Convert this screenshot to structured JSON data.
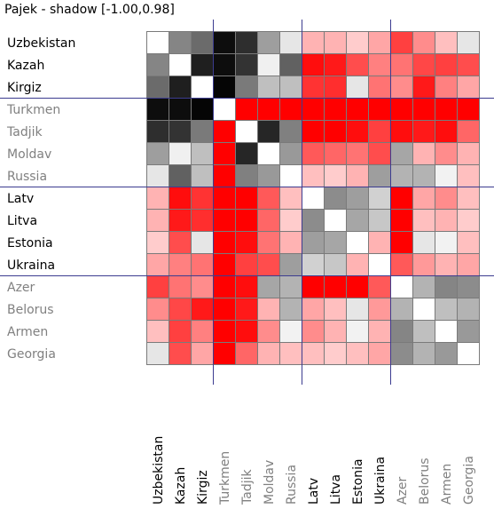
{
  "window": {
    "title": "Pajek - shadow [-1.00,0.98]"
  },
  "colors": {
    "background": "#ffffff",
    "cell_border": "#7a7a7a",
    "partition_line": "#3c3c90",
    "label_dark": "#000000",
    "label_gray": "#808080",
    "negative_hue": "#ff0000",
    "positive_shade": "#000000"
  },
  "chart_data": {
    "type": "heatmap",
    "title": "shadow [-1.00,0.98]",
    "value_range": [
      -1.0,
      0.98
    ],
    "rows": [
      "Uzbekistan",
      "Kazah",
      "Kirgiz",
      "Turkmen",
      "Tadjik",
      "Moldav",
      "Russia",
      "Latv",
      "Litva",
      "Estonia",
      "Ukraina",
      "Azer",
      "Belorus",
      "Armen",
      "Georgia"
    ],
    "columns": [
      "Uzbekistan",
      "Kazah",
      "Kirgiz",
      "Turkmen",
      "Tadjik",
      "Moldav",
      "Russia",
      "Latv",
      "Litva",
      "Estonia",
      "Ukraina",
      "Azer",
      "Belorus",
      "Armen",
      "Georgia"
    ],
    "label_tone": [
      "dark",
      "dark",
      "dark",
      "gray",
      "gray",
      "gray",
      "gray",
      "dark",
      "dark",
      "dark",
      "dark",
      "gray",
      "gray",
      "gray",
      "gray"
    ],
    "partitions_after": [
      2,
      6,
      10
    ],
    "values": [
      [
        0.0,
        0.48,
        0.58,
        0.95,
        0.82,
        0.38,
        0.1,
        -0.3,
        -0.3,
        -0.2,
        -0.35,
        -0.75,
        -0.45,
        -0.25,
        0.1
      ],
      [
        0.48,
        0.0,
        0.88,
        0.95,
        0.8,
        0.06,
        0.62,
        -0.95,
        -0.9,
        -0.7,
        -0.5,
        -0.55,
        -0.72,
        -0.75,
        -0.7
      ],
      [
        0.58,
        0.88,
        0.0,
        0.98,
        0.52,
        0.25,
        0.25,
        -0.8,
        -0.82,
        0.1,
        -0.55,
        -0.45,
        -0.9,
        -0.5,
        -0.35
      ],
      [
        0.95,
        0.95,
        0.98,
        0.0,
        -1.0,
        -1.0,
        -1.0,
        -1.0,
        -1.0,
        -1.0,
        -1.0,
        -1.0,
        -1.0,
        -1.0,
        -1.0
      ],
      [
        0.82,
        0.8,
        0.52,
        -1.0,
        0.0,
        0.85,
        0.5,
        -1.0,
        -1.0,
        -0.95,
        -0.75,
        -0.95,
        -0.9,
        -0.95,
        -0.6
      ],
      [
        0.38,
        0.06,
        0.25,
        -1.0,
        0.85,
        0.0,
        0.4,
        -0.65,
        -0.6,
        -0.55,
        -0.7,
        0.35,
        -0.3,
        -0.45,
        -0.3
      ],
      [
        0.1,
        0.62,
        0.25,
        -1.0,
        0.5,
        0.4,
        0.0,
        -0.25,
        -0.2,
        -0.3,
        0.38,
        0.3,
        0.3,
        0.05,
        -0.25
      ],
      [
        -0.3,
        -0.95,
        -0.8,
        -1.0,
        -1.0,
        -0.65,
        -0.25,
        0.0,
        0.45,
        0.38,
        0.18,
        -1.0,
        -0.35,
        -0.45,
        -0.25
      ],
      [
        -0.3,
        -0.9,
        -0.82,
        -1.0,
        -1.0,
        -0.6,
        -0.2,
        0.45,
        0.0,
        0.35,
        0.22,
        -1.0,
        -0.25,
        -0.3,
        -0.2
      ],
      [
        -0.2,
        -0.7,
        0.1,
        -1.0,
        -0.95,
        -0.55,
        -0.3,
        0.38,
        0.35,
        0.0,
        -0.3,
        -1.0,
        0.1,
        0.05,
        -0.25
      ],
      [
        -0.35,
        -0.5,
        -0.55,
        -1.0,
        -0.75,
        -0.7,
        0.38,
        0.18,
        0.22,
        -0.3,
        0.0,
        -0.65,
        -0.4,
        -0.3,
        -0.35
      ],
      [
        -0.75,
        -0.55,
        -0.45,
        -1.0,
        -0.95,
        0.35,
        0.3,
        -1.0,
        -1.0,
        -1.0,
        -0.65,
        0.0,
        0.3,
        0.48,
        0.45
      ],
      [
        -0.45,
        -0.72,
        -0.9,
        -1.0,
        -0.9,
        -0.3,
        0.3,
        -0.35,
        -0.25,
        0.1,
        -0.4,
        0.3,
        0.0,
        0.25,
        0.3
      ],
      [
        -0.25,
        -0.75,
        -0.5,
        -1.0,
        -0.95,
        -0.45,
        0.05,
        -0.45,
        -0.3,
        0.05,
        -0.3,
        0.48,
        0.25,
        0.0,
        0.4
      ],
      [
        0.1,
        -0.7,
        -0.35,
        -1.0,
        -0.6,
        -0.3,
        -0.25,
        -0.25,
        -0.2,
        -0.25,
        -0.35,
        0.45,
        0.3,
        0.4,
        0.0
      ]
    ]
  }
}
